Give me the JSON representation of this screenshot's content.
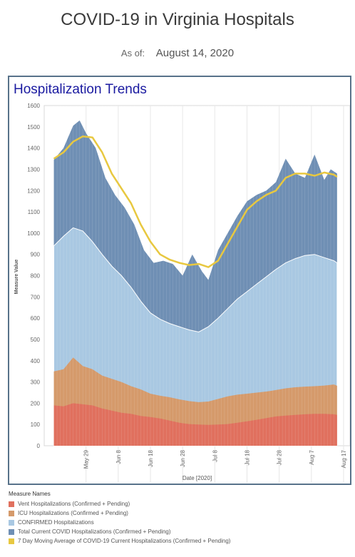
{
  "header": {
    "title": "COVID-19 in Virginia Hospitals",
    "as_of_label": "As of:",
    "as_of_date": "August 14, 2020"
  },
  "panel": {
    "title": "Hospitalization Trends"
  },
  "chart_data": {
    "type": "area",
    "ylabel": "Measure Value",
    "xlabel": "Date [2020]",
    "ylim": [
      0,
      1600
    ],
    "yticks": [
      0,
      100,
      200,
      300,
      400,
      500,
      600,
      700,
      800,
      900,
      1000,
      1100,
      1200,
      1300,
      1400,
      1500,
      1600
    ],
    "x_start": "2020-05-19",
    "x_end": "2020-08-15",
    "x_range": [
      "2020-05-16",
      "2020-08-19"
    ],
    "xticks": [
      {
        "date": "2020-05-29",
        "label": "May 29"
      },
      {
        "date": "2020-06-08",
        "label": "Jun 8"
      },
      {
        "date": "2020-06-18",
        "label": "Jun 18"
      },
      {
        "date": "2020-06-28",
        "label": "Jun 28"
      },
      {
        "date": "2020-07-08",
        "label": "Jul 8"
      },
      {
        "date": "2020-07-18",
        "label": "Jul 18"
      },
      {
        "date": "2020-07-28",
        "label": "Jul 28"
      },
      {
        "date": "2020-08-07",
        "label": "Aug 7"
      },
      {
        "date": "2020-08-17",
        "label": "Aug 17"
      }
    ],
    "grid": "vertical",
    "legend_position": "bottom-left",
    "legend_title": "Measure Names",
    "series": [
      {
        "name": "Vent Hospitalizations (Confirmed + Pending)",
        "color": "#e0705e",
        "points": [
          [
            "2020-05-19",
            190
          ],
          [
            "2020-05-22",
            185
          ],
          [
            "2020-05-25",
            200
          ],
          [
            "2020-05-28",
            195
          ],
          [
            "2020-05-31",
            190
          ],
          [
            "2020-06-03",
            175
          ],
          [
            "2020-06-06",
            165
          ],
          [
            "2020-06-09",
            155
          ],
          [
            "2020-06-12",
            150
          ],
          [
            "2020-06-15",
            140
          ],
          [
            "2020-06-18",
            135
          ],
          [
            "2020-06-21",
            128
          ],
          [
            "2020-06-24",
            118
          ],
          [
            "2020-06-27",
            108
          ],
          [
            "2020-06-30",
            102
          ],
          [
            "2020-07-03",
            100
          ],
          [
            "2020-07-06",
            98
          ],
          [
            "2020-07-09",
            100
          ],
          [
            "2020-07-12",
            102
          ],
          [
            "2020-07-15",
            108
          ],
          [
            "2020-07-18",
            115
          ],
          [
            "2020-07-21",
            122
          ],
          [
            "2020-07-24",
            130
          ],
          [
            "2020-07-27",
            138
          ],
          [
            "2020-07-30",
            142
          ],
          [
            "2020-08-02",
            145
          ],
          [
            "2020-08-05",
            148
          ],
          [
            "2020-08-08",
            150
          ],
          [
            "2020-08-11",
            150
          ],
          [
            "2020-08-14",
            148
          ],
          [
            "2020-08-15",
            145
          ]
        ]
      },
      {
        "name": "ICU Hospitalizations (Confirmed + Pending)",
        "color": "#d59a6b",
        "points": [
          [
            "2020-05-19",
            350
          ],
          [
            "2020-05-22",
            360
          ],
          [
            "2020-05-25",
            415
          ],
          [
            "2020-05-28",
            375
          ],
          [
            "2020-05-31",
            360
          ],
          [
            "2020-06-03",
            330
          ],
          [
            "2020-06-06",
            315
          ],
          [
            "2020-06-09",
            300
          ],
          [
            "2020-06-12",
            280
          ],
          [
            "2020-06-15",
            265
          ],
          [
            "2020-06-18",
            245
          ],
          [
            "2020-06-21",
            235
          ],
          [
            "2020-06-24",
            228
          ],
          [
            "2020-06-27",
            218
          ],
          [
            "2020-06-30",
            210
          ],
          [
            "2020-07-03",
            205
          ],
          [
            "2020-07-06",
            208
          ],
          [
            "2020-07-09",
            220
          ],
          [
            "2020-07-12",
            232
          ],
          [
            "2020-07-15",
            240
          ],
          [
            "2020-07-18",
            245
          ],
          [
            "2020-07-21",
            250
          ],
          [
            "2020-07-24",
            255
          ],
          [
            "2020-07-27",
            262
          ],
          [
            "2020-07-30",
            270
          ],
          [
            "2020-08-02",
            275
          ],
          [
            "2020-08-05",
            278
          ],
          [
            "2020-08-08",
            280
          ],
          [
            "2020-08-11",
            283
          ],
          [
            "2020-08-14",
            288
          ],
          [
            "2020-08-15",
            282
          ]
        ]
      },
      {
        "name": "CONFIRMED Hospitalizations",
        "color": "#a9c8e2",
        "points": [
          [
            "2020-05-19",
            940
          ],
          [
            "2020-05-22",
            985
          ],
          [
            "2020-05-25",
            1025
          ],
          [
            "2020-05-28",
            1010
          ],
          [
            "2020-05-31",
            960
          ],
          [
            "2020-06-03",
            900
          ],
          [
            "2020-06-06",
            845
          ],
          [
            "2020-06-09",
            800
          ],
          [
            "2020-06-12",
            745
          ],
          [
            "2020-06-15",
            680
          ],
          [
            "2020-06-18",
            625
          ],
          [
            "2020-06-21",
            595
          ],
          [
            "2020-06-24",
            575
          ],
          [
            "2020-06-27",
            560
          ],
          [
            "2020-06-30",
            545
          ],
          [
            "2020-07-03",
            535
          ],
          [
            "2020-07-06",
            560
          ],
          [
            "2020-07-09",
            600
          ],
          [
            "2020-07-12",
            645
          ],
          [
            "2020-07-15",
            690
          ],
          [
            "2020-07-18",
            725
          ],
          [
            "2020-07-21",
            760
          ],
          [
            "2020-07-24",
            795
          ],
          [
            "2020-07-27",
            830
          ],
          [
            "2020-07-30",
            860
          ],
          [
            "2020-08-02",
            880
          ],
          [
            "2020-08-05",
            895
          ],
          [
            "2020-08-08",
            900
          ],
          [
            "2020-08-11",
            885
          ],
          [
            "2020-08-14",
            870
          ],
          [
            "2020-08-15",
            860
          ]
        ]
      },
      {
        "name": "Total Current COVID Hospitalizations (Confirmed + Pending)",
        "color": "#6f8fb4",
        "points": [
          [
            "2020-05-19",
            1345
          ],
          [
            "2020-05-22",
            1400
          ],
          [
            "2020-05-25",
            1505
          ],
          [
            "2020-05-27",
            1530
          ],
          [
            "2020-05-29",
            1470
          ],
          [
            "2020-06-01",
            1400
          ],
          [
            "2020-06-04",
            1260
          ],
          [
            "2020-06-07",
            1180
          ],
          [
            "2020-06-10",
            1120
          ],
          [
            "2020-06-13",
            1040
          ],
          [
            "2020-06-16",
            920
          ],
          [
            "2020-06-19",
            860
          ],
          [
            "2020-06-22",
            870
          ],
          [
            "2020-06-25",
            855
          ],
          [
            "2020-06-28",
            800
          ],
          [
            "2020-07-01",
            900
          ],
          [
            "2020-07-04",
            820
          ],
          [
            "2020-07-06",
            780
          ],
          [
            "2020-07-09",
            920
          ],
          [
            "2020-07-12",
            1000
          ],
          [
            "2020-07-15",
            1080
          ],
          [
            "2020-07-18",
            1150
          ],
          [
            "2020-07-21",
            1180
          ],
          [
            "2020-07-24",
            1200
          ],
          [
            "2020-07-27",
            1240
          ],
          [
            "2020-07-30",
            1350
          ],
          [
            "2020-08-02",
            1280
          ],
          [
            "2020-08-05",
            1260
          ],
          [
            "2020-08-08",
            1370
          ],
          [
            "2020-08-11",
            1250
          ],
          [
            "2020-08-13",
            1300
          ],
          [
            "2020-08-15",
            1280
          ]
        ]
      },
      {
        "name": "7 Day Moving Average of COVID-19 Current Hospitalizations (Confirmed + Pending)",
        "color": "#e8c840",
        "points": [
          [
            "2020-05-19",
            1350
          ],
          [
            "2020-05-22",
            1380
          ],
          [
            "2020-05-25",
            1430
          ],
          [
            "2020-05-28",
            1455
          ],
          [
            "2020-05-31",
            1450
          ],
          [
            "2020-06-03",
            1380
          ],
          [
            "2020-06-06",
            1280
          ],
          [
            "2020-06-09",
            1210
          ],
          [
            "2020-06-12",
            1140
          ],
          [
            "2020-06-15",
            1040
          ],
          [
            "2020-06-18",
            960
          ],
          [
            "2020-06-21",
            900
          ],
          [
            "2020-06-24",
            875
          ],
          [
            "2020-06-27",
            860
          ],
          [
            "2020-06-30",
            850
          ],
          [
            "2020-07-03",
            855
          ],
          [
            "2020-07-06",
            840
          ],
          [
            "2020-07-09",
            870
          ],
          [
            "2020-07-12",
            950
          ],
          [
            "2020-07-15",
            1030
          ],
          [
            "2020-07-18",
            1110
          ],
          [
            "2020-07-21",
            1150
          ],
          [
            "2020-07-24",
            1180
          ],
          [
            "2020-07-27",
            1200
          ],
          [
            "2020-07-30",
            1260
          ],
          [
            "2020-08-02",
            1280
          ],
          [
            "2020-08-05",
            1280
          ],
          [
            "2020-08-08",
            1270
          ],
          [
            "2020-08-11",
            1285
          ],
          [
            "2020-08-14",
            1275
          ],
          [
            "2020-08-15",
            1265
          ]
        ]
      }
    ]
  }
}
